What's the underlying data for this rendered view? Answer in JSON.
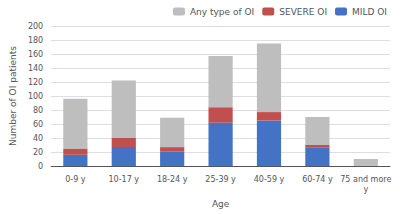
{
  "chart_data": {
    "type": "bar",
    "xlabel": "Age",
    "ylabel": "Number of OI patients",
    "categories": [
      "0-9 y",
      "10-17 y",
      "18-24 y",
      "25-39 y",
      "40-59 y",
      "60-74 y",
      "75 and more\ny"
    ],
    "series": [
      {
        "name": "MILD OI",
        "color": "#4472C4",
        "values": [
          16,
          27,
          21,
          62,
          65,
          26,
          0
        ]
      },
      {
        "name": "SEVERE OI",
        "color": "#C0504D",
        "values": [
          9,
          13,
          6,
          22,
          12,
          4,
          0
        ]
      },
      {
        "name": "Any type of OI",
        "color": "#BEBEBE",
        "values": [
          71,
          82,
          42,
          73,
          98,
          40,
          10
        ]
      }
    ],
    "stacked": true,
    "ylim": [
      0,
      200
    ],
    "yticks": [
      0,
      20,
      40,
      60,
      80,
      100,
      120,
      140,
      160,
      180,
      200
    ],
    "grid": true,
    "legend": "upper right"
  }
}
